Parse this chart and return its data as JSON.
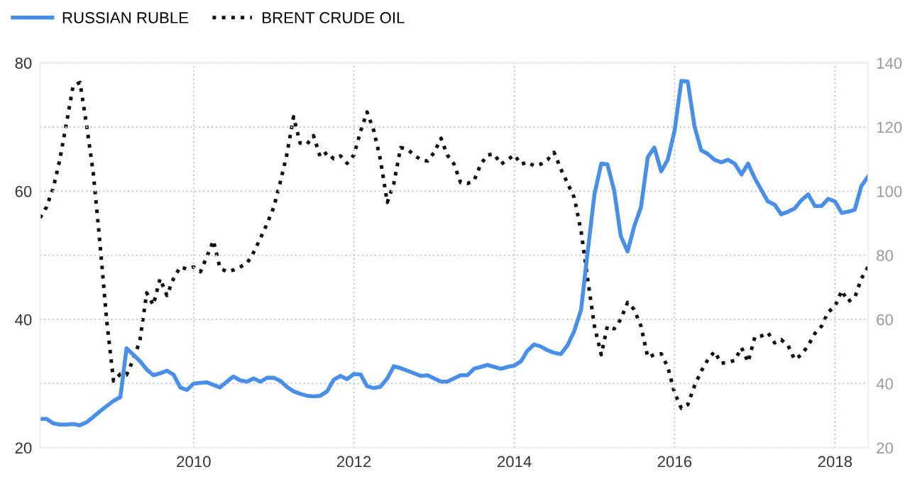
{
  "chart_data": {
    "type": "line",
    "x": [
      "2008-02",
      "2008-03",
      "2008-04",
      "2008-05",
      "2008-06",
      "2008-07",
      "2008-08",
      "2008-09",
      "2008-10",
      "2008-11",
      "2008-12",
      "2009-01",
      "2009-02",
      "2009-03",
      "2009-04",
      "2009-05",
      "2009-06",
      "2009-07",
      "2009-08",
      "2009-09",
      "2009-10",
      "2009-11",
      "2009-12",
      "2010-01",
      "2010-02",
      "2010-03",
      "2010-04",
      "2010-05",
      "2010-06",
      "2010-07",
      "2010-08",
      "2010-09",
      "2010-10",
      "2010-11",
      "2010-12",
      "2011-01",
      "2011-02",
      "2011-03",
      "2011-04",
      "2011-05",
      "2011-06",
      "2011-07",
      "2011-08",
      "2011-09",
      "2011-10",
      "2011-11",
      "2011-12",
      "2012-01",
      "2012-02",
      "2012-03",
      "2012-04",
      "2012-05",
      "2012-06",
      "2012-07",
      "2012-08",
      "2012-09",
      "2012-10",
      "2012-11",
      "2012-12",
      "2013-01",
      "2013-02",
      "2013-03",
      "2013-04",
      "2013-05",
      "2013-06",
      "2013-07",
      "2013-08",
      "2013-09",
      "2013-10",
      "2013-11",
      "2013-12",
      "2014-01",
      "2014-02",
      "2014-03",
      "2014-04",
      "2014-05",
      "2014-06",
      "2014-07",
      "2014-08",
      "2014-09",
      "2014-10",
      "2014-11",
      "2014-12",
      "2015-01",
      "2015-02",
      "2015-03",
      "2015-04",
      "2015-05",
      "2015-06",
      "2015-07",
      "2015-08",
      "2015-09",
      "2015-10",
      "2015-11",
      "2015-12",
      "2016-01",
      "2016-02",
      "2016-03",
      "2016-04",
      "2016-05",
      "2016-06",
      "2016-07",
      "2016-08",
      "2016-09",
      "2016-10",
      "2016-11",
      "2016-12",
      "2017-01",
      "2017-02",
      "2017-03",
      "2017-04",
      "2017-05",
      "2017-06",
      "2017-07",
      "2017-08",
      "2017-09",
      "2017-10",
      "2017-11",
      "2017-12",
      "2018-01",
      "2018-02",
      "2018-03",
      "2018-04",
      "2018-05",
      "2018-06"
    ],
    "series": [
      {
        "name": "RUSSIAN RUBLE",
        "color": "#4a8fe7",
        "line_style": "solid",
        "values": [
          24.5,
          24.5,
          23.8,
          23.6,
          23.6,
          23.7,
          23.5,
          24.0,
          24.8,
          25.7,
          26.5,
          27.3,
          27.9,
          35.5,
          34.5,
          33.5,
          32.2,
          31.3,
          31.6,
          32.0,
          31.4,
          29.4,
          29.0,
          30.0,
          30.1,
          30.2,
          29.8,
          29.4,
          30.3,
          31.1,
          30.5,
          30.3,
          30.8,
          30.3,
          30.9,
          30.9,
          30.4,
          29.5,
          28.8,
          28.4,
          28.1,
          28.0,
          28.1,
          28.8,
          30.6,
          31.2,
          30.7,
          31.5,
          31.4,
          29.6,
          29.3,
          29.5,
          30.8,
          32.7,
          32.4,
          32.0,
          31.6,
          31.2,
          31.3,
          30.8,
          30.3,
          30.3,
          30.8,
          31.3,
          31.3,
          32.3,
          32.6,
          32.9,
          32.6,
          32.3,
          32.6,
          32.8,
          33.5,
          35.1,
          36.1,
          35.8,
          35.2,
          34.8,
          34.6,
          36.0,
          38.2,
          41.5,
          50.5,
          59.5,
          64.3,
          64.2,
          60.1,
          53.0,
          50.6,
          54.5,
          57.5,
          65.3,
          66.8,
          63.1,
          64.9,
          69.4,
          77.2,
          77.1,
          70.1,
          66.4,
          65.8,
          64.9,
          64.5,
          64.9,
          64.3,
          62.6,
          64.3,
          62.0,
          60.1,
          58.4,
          57.9,
          56.4,
          56.8,
          57.3,
          58.6,
          59.5,
          57.7,
          57.7,
          58.8,
          58.4,
          56.6,
          56.8,
          57.1,
          60.8,
          62.3
        ]
      },
      {
        "name": "BRENT CRUDE OIL",
        "color": "#111111",
        "line_style": "dotted",
        "axis": "y2",
        "values": [
          91.7,
          95.0,
          100.9,
          109.8,
          121.4,
          132.9,
          133.9,
          120.2,
          105.4,
          83.1,
          59.4,
          40.8,
          43.0,
          42.7,
          47.5,
          53.4,
          68.3,
          64.5,
          72.7,
          67.5,
          72.7,
          76.4,
          75.7,
          76.4,
          74.9,
          79.4,
          84.6,
          76.0,
          74.9,
          75.4,
          76.4,
          77.5,
          80.9,
          85.3,
          89.8,
          95.0,
          103.2,
          111.3,
          123.2,
          115.0,
          114.6,
          117.3,
          110.6,
          112.1,
          110.1,
          111.0,
          108.7,
          111.3,
          118.8,
          124.7,
          118.8,
          109.8,
          96.5,
          102.4,
          113.6,
          113.1,
          111.3,
          109.8,
          109.4,
          112.1,
          116.5,
          111.3,
          108.5,
          102.7,
          102.4,
          103.2,
          108.4,
          111.3,
          111.6,
          108.4,
          109.8,
          111.3,
          108.4,
          109.1,
          107.9,
          108.4,
          109.8,
          112.1,
          106.9,
          102.4,
          98.0,
          87.6,
          72.7,
          57.9,
          49.0,
          57.9,
          57.1,
          60.1,
          65.3,
          63.1,
          57.9,
          48.2,
          49.0,
          49.3,
          45.2,
          37.1,
          32.3,
          33.4,
          39.3,
          43.8,
          47.5,
          50.0,
          46.3,
          46.7,
          47.2,
          51.2,
          46.7,
          54.6,
          54.9,
          55.9,
          52.7,
          53.7,
          51.9,
          47.5,
          49.0,
          51.9,
          55.6,
          57.9,
          62.3,
          64.1,
          69.0,
          65.6,
          66.8,
          72.7,
          76.4
        ]
      }
    ],
    "xlim": [
      "2008-02",
      "2018-06"
    ],
    "xticks": [
      {
        "value": "2010-01",
        "label": "2010"
      },
      {
        "value": "2012-01",
        "label": "2012"
      },
      {
        "value": "2014-01",
        "label": "2014"
      },
      {
        "value": "2016-01",
        "label": "2016"
      },
      {
        "value": "2018-01",
        "label": "2018"
      }
    ],
    "ylim": [
      20,
      80
    ],
    "yticks": [
      20,
      {
        "value": 30,
        "label": null
      },
      40,
      {
        "value": 50,
        "label": null
      },
      60,
      {
        "value": 70,
        "label": null
      },
      80
    ],
    "y2lim": [
      20,
      140
    ],
    "y2ticks": [
      20,
      40,
      60,
      80,
      100,
      120,
      140
    ],
    "grid": true,
    "legend": "top left"
  }
}
